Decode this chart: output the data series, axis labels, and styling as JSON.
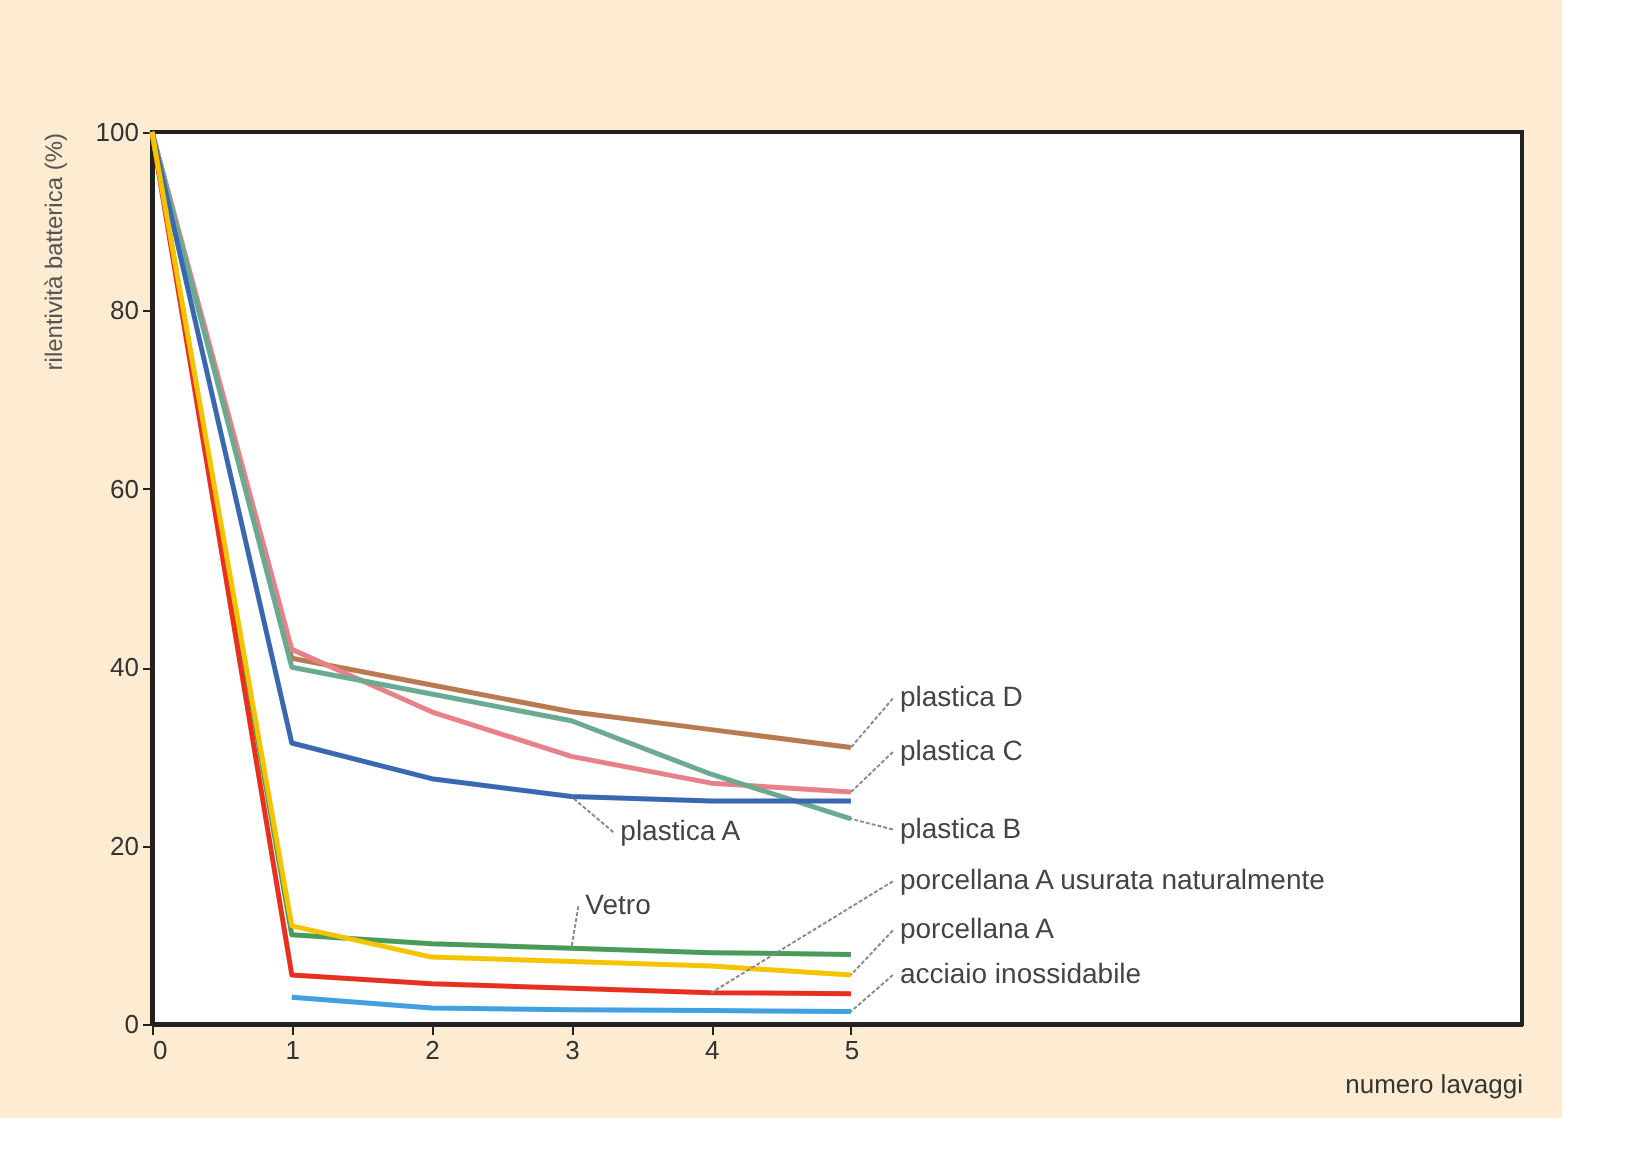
{
  "chart_data": {
    "type": "line",
    "xlabel": "numero lavaggi",
    "ylabel": "rilentività batterica (%)",
    "x": [
      0,
      1,
      2,
      3,
      4,
      5
    ],
    "series": [
      {
        "name": "plastica D",
        "color": "#b87a50",
        "values": [
          100,
          41,
          38,
          35,
          33,
          31
        ]
      },
      {
        "name": "plastica C",
        "color": "#e8808a",
        "values": [
          100,
          42,
          35,
          30,
          27,
          26
        ]
      },
      {
        "name": "plastica B",
        "color": "#6aaa90",
        "values": [
          100,
          40,
          37,
          34,
          28,
          23
        ]
      },
      {
        "name": "plastica A",
        "color": "#3a68b0",
        "values": [
          100,
          31.5,
          27.5,
          25.5,
          25,
          25
        ]
      },
      {
        "name": "Vetro",
        "color": "#4a9a5a",
        "values": [
          100,
          10,
          9,
          8.5,
          8,
          7.8
        ]
      },
      {
        "name": "porcellana A usurata naturalmente",
        "color": "#e83020",
        "values": [
          100,
          5.5,
          4.5,
          4,
          3.5,
          3.4
        ]
      },
      {
        "name": "porcellana A",
        "color": "#f5c400",
        "values": [
          100,
          11,
          7.5,
          7,
          6.5,
          5.5
        ]
      },
      {
        "name": "acciaio inossidabile",
        "color": "#40a0e0",
        "x": [
          1,
          2,
          3,
          4,
          5
        ],
        "values": [
          3,
          1.8,
          1.6,
          1.5,
          1.4
        ]
      }
    ],
    "xlim": [
      0,
      9.8
    ],
    "xticks": [
      0,
      1,
      2,
      3,
      4,
      5
    ],
    "ylim": [
      0,
      100
    ],
    "yticks": [
      0,
      20,
      40,
      60,
      80,
      100
    ],
    "grid": false,
    "legend": false,
    "marker": "none",
    "line_style": "solid"
  }
}
